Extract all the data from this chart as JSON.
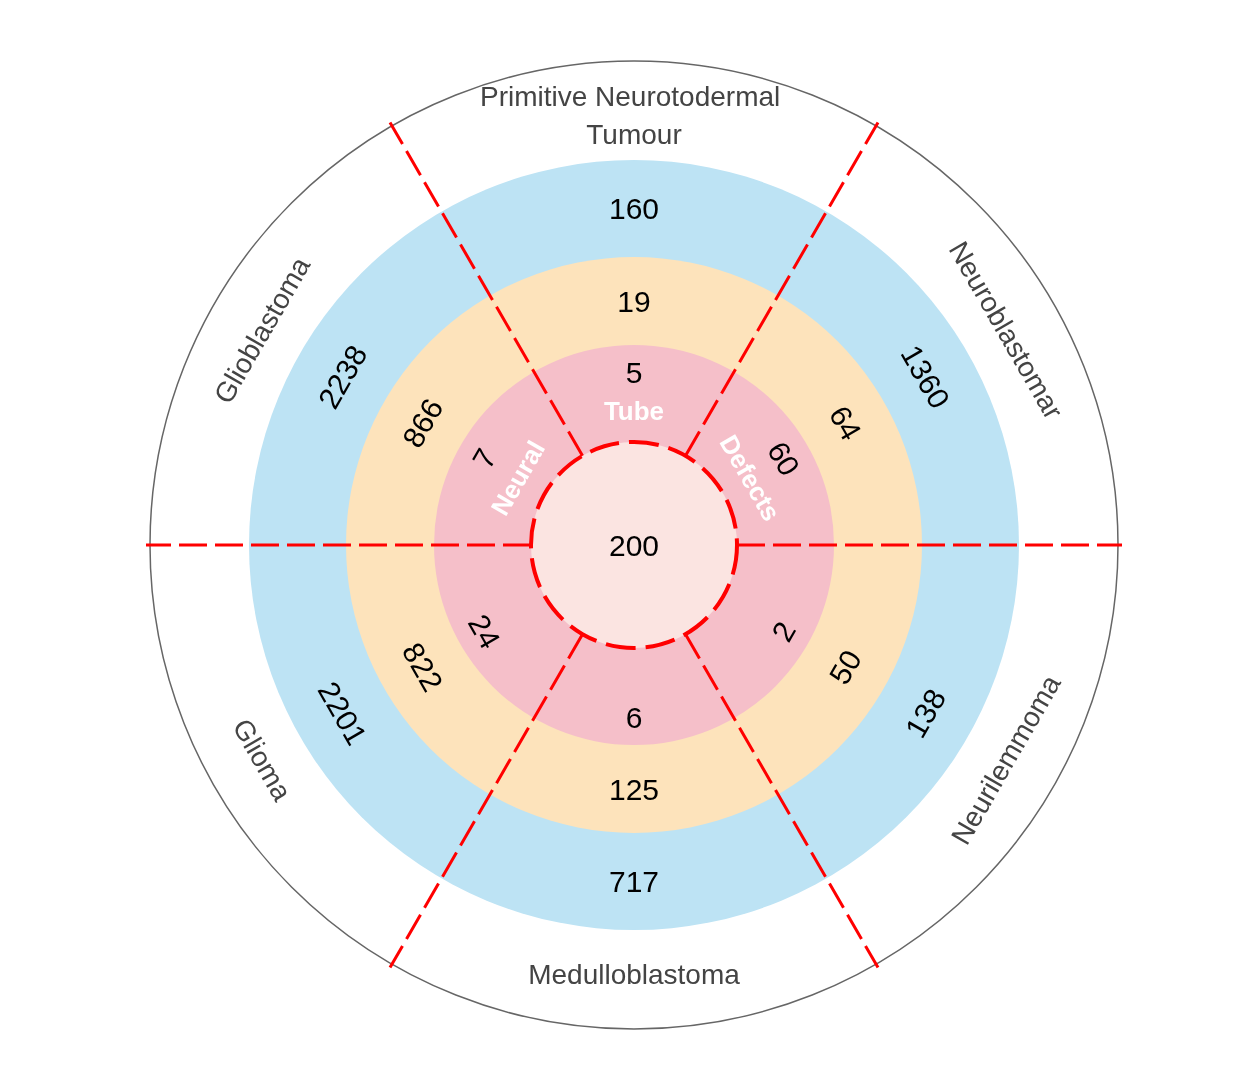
{
  "chart_data": {
    "type": "other",
    "categories": [
      "Primitive Neurotodermal Tumour",
      "Neuroblastomar",
      "Neurilemmoma",
      "Medulloblastoma",
      "Glioma",
      "Glioblastoma"
    ],
    "series": [
      {
        "color": "#bde3f4",
        "values": [
          160,
          1360,
          138,
          717,
          2201,
          2238
        ]
      },
      {
        "color": "#fde3bb",
        "values": [
          19,
          64,
          50,
          125,
          822,
          866
        ]
      },
      {
        "color": "#f5bfc9",
        "values": [
          5,
          60,
          2,
          6,
          24,
          7
        ]
      }
    ],
    "data_labels": true,
    "annotations": [
      "Neural Tube Defects",
      "200"
    ]
  }
}
